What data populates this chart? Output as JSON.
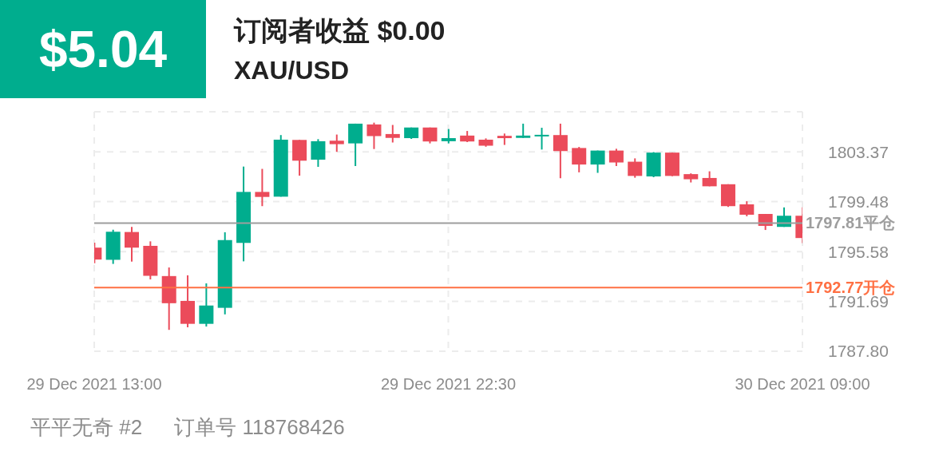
{
  "chart_data": {
    "type": "candlestick",
    "title": "订阅者收益 $0.00",
    "subtitle": "XAU/USD",
    "annotations": [
      "$5.04",
      "平平无奇 #2",
      "订单号 118768426"
    ],
    "categories": [
      "29 Dec 2021 13:00",
      null,
      null,
      null,
      null,
      null,
      null,
      null,
      null,
      null,
      null,
      null,
      null,
      null,
      null,
      null,
      null,
      null,
      null,
      "29 Dec 2021 22:30",
      null,
      null,
      null,
      null,
      null,
      null,
      null,
      null,
      null,
      null,
      null,
      null,
      null,
      null,
      null,
      null,
      null,
      null,
      "30 Dec 2021 09:00"
    ],
    "ohlc": [
      [
        1795.89,
        1796.28,
        1794.68,
        1794.96
      ],
      [
        1794.94,
        1797.29,
        1794.62,
        1797.13
      ],
      [
        1797.11,
        1797.51,
        1794.8,
        1795.89
      ],
      [
        1796.03,
        1796.38,
        1793.41,
        1793.69
      ],
      [
        1793.67,
        1794.34,
        1789.47,
        1791.55
      ],
      [
        1791.73,
        1793.73,
        1789.67,
        1789.94
      ],
      [
        1789.94,
        1793.1,
        1789.73,
        1791.37
      ],
      [
        1791.19,
        1797.09,
        1790.68,
        1796.48
      ],
      [
        1796.26,
        1802.22,
        1794.82,
        1800.24
      ],
      [
        1800.24,
        1802.04,
        1799.13,
        1799.85
      ],
      [
        1799.87,
        1804.68,
        1799.87,
        1804.32
      ],
      [
        1804.3,
        1804.3,
        1801.51,
        1802.68
      ],
      [
        1802.76,
        1804.36,
        1802.2,
        1804.2
      ],
      [
        1804.24,
        1804.72,
        1803.37,
        1803.97
      ],
      [
        1804.03,
        1805.57,
        1802.26,
        1805.57
      ],
      [
        1805.51,
        1805.65,
        1803.59,
        1804.6
      ],
      [
        1804.76,
        1805.47,
        1804.1,
        1804.46
      ],
      [
        1804.44,
        1805.27,
        1804.38,
        1805.27
      ],
      [
        1805.27,
        1805.27,
        1804.03,
        1804.18
      ],
      [
        1804.2,
        1805.15,
        1804.03,
        1804.44
      ],
      [
        1804.64,
        1805.0,
        1804.13,
        1804.18
      ],
      [
        1804.32,
        1804.42,
        1803.77,
        1803.85
      ],
      [
        1804.62,
        1804.8,
        1803.91,
        1804.44
      ],
      [
        1804.46,
        1805.57,
        1804.46,
        1804.64
      ],
      [
        1804.58,
        1805.25,
        1803.55,
        1804.7
      ],
      [
        1804.68,
        1805.57,
        1801.31,
        1803.43
      ],
      [
        1803.67,
        1803.75,
        1801.77,
        1802.38
      ],
      [
        1802.38,
        1803.47,
        1801.73,
        1803.47
      ],
      [
        1803.47,
        1803.61,
        1802.26,
        1802.54
      ],
      [
        1802.6,
        1802.86,
        1801.35,
        1801.49
      ],
      [
        1801.45,
        1803.35,
        1801.39,
        1803.31
      ],
      [
        1803.31,
        1803.31,
        1801.47,
        1801.49
      ],
      [
        1801.63,
        1801.69,
        1800.98,
        1801.23
      ],
      [
        1801.33,
        1801.85,
        1800.68,
        1800.68
      ],
      [
        1800.84,
        1800.84,
        1799.07,
        1799.13
      ],
      [
        1799.27,
        1799.51,
        1798.34,
        1798.46
      ],
      [
        1798.52,
        1798.52,
        1797.27,
        1797.59
      ],
      [
        1797.51,
        1799.03,
        1797.51,
        1798.38
      ],
      [
        1798.38,
        1799.03,
        1796.24,
        1796.64
      ]
    ],
    "colors": [
      "#eb4b5a",
      "#00ad8e",
      "#eb4b5a",
      "#eb4b5a",
      "#eb4b5a",
      "#eb4b5a",
      "#00ad8e",
      "#00ad8e",
      "#00ad8e",
      "#eb4b5a",
      "#00ad8e",
      "#eb4b5a",
      "#00ad8e",
      "#eb4b5a",
      "#00ad8e",
      "#eb4b5a",
      "#eb4b5a",
      "#00ad8e",
      "#eb4b5a",
      "#00ad8e",
      "#eb4b5a",
      "#eb4b5a",
      "#eb4b5a",
      "#00ad8e",
      "#00ad8e",
      "#eb4b5a",
      "#eb4b5a",
      "#00ad8e",
      "#eb4b5a",
      "#eb4b5a",
      "#00ad8e",
      "#eb4b5a",
      "#eb4b5a",
      "#eb4b5a",
      "#eb4b5a",
      "#eb4b5a",
      "#eb4b5a",
      "#00ad8e",
      "#eb4b5a"
    ],
    "ylim": [
      1787.8,
      1806.5
    ],
    "yticks": [
      {
        "value": 1787.8,
        "label": "1787.80"
      },
      1791.69,
      1795.58,
      {
        "value": 1799.48,
        "label": "1799.48"
      },
      1803.37
    ],
    "ref_lines": [
      {
        "axis": "y",
        "value": 1797.81,
        "label": "1797.81平仓",
        "color": "#9e9e9e"
      },
      {
        "axis": "y",
        "value": 1792.77,
        "label": "1792.77开仓",
        "color": "#ff7043"
      }
    ],
    "grid": true
  }
}
